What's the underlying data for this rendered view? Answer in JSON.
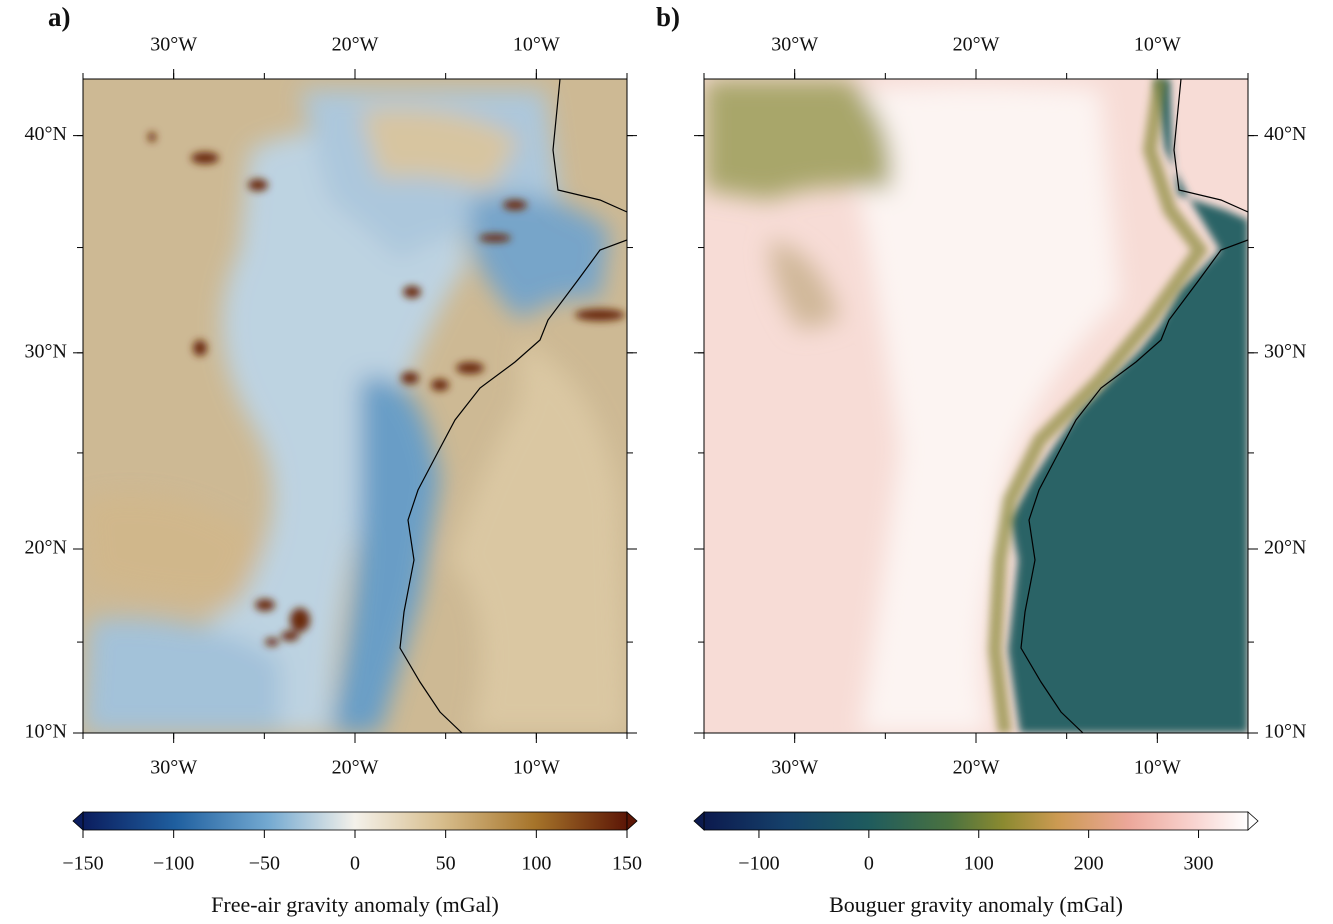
{
  "panels": [
    {
      "label": "a)",
      "lon_range": [
        -35,
        -5
      ],
      "lat_range": [
        10,
        42.4
      ],
      "lon_ticks": [
        {
          "value": -30,
          "label": "30°W"
        },
        {
          "value": -20,
          "label": "20°W"
        },
        {
          "value": -10,
          "label": "10°W"
        }
      ],
      "lat_ticks": [
        {
          "value": 40,
          "label": "40°N"
        },
        {
          "value": 30,
          "label": "30°N"
        },
        {
          "value": 20,
          "label": "20°N"
        },
        {
          "value": 10,
          "label": "10°N"
        }
      ],
      "colorbar": {
        "range": [
          -150,
          150
        ],
        "ticks": [
          {
            "value": -150,
            "label": "−150"
          },
          {
            "value": -100,
            "label": "−100"
          },
          {
            "value": -50,
            "label": "−50"
          },
          0,
          50,
          100,
          150
        ],
        "label": "Free-air gravity anomaly (mGal)"
      }
    },
    {
      "label": "b)",
      "lon_range": [
        -35,
        -5
      ],
      "lat_range": [
        10,
        42.4
      ],
      "lon_ticks": [
        {
          "value": -30,
          "label": "30°W"
        },
        {
          "value": -20,
          "label": "20°W"
        },
        {
          "value": -10,
          "label": "10°W"
        }
      ],
      "lat_ticks": [
        {
          "value": 40,
          "label": "40°N"
        },
        {
          "value": 30,
          "label": "30°N"
        },
        {
          "value": 20,
          "label": "20°N"
        },
        {
          "value": 10,
          "label": "10°N"
        }
      ],
      "colorbar": {
        "range": [
          -150,
          345
        ],
        "ticks": [
          {
            "value": -100,
            "label": "−100"
          },
          0,
          100,
          200,
          300
        ],
        "label": "Bouguer gravity anomaly (mGal)"
      }
    }
  ]
}
